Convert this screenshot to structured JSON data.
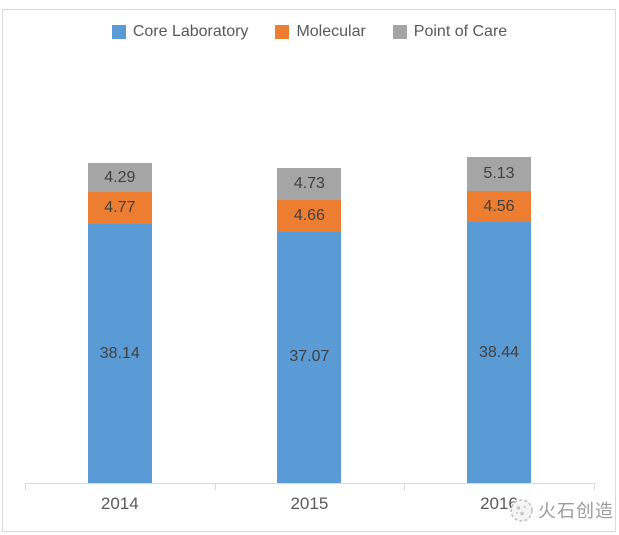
{
  "chart_data": {
    "type": "bar",
    "stacked": true,
    "categories": [
      "2014",
      "2015",
      "2016"
    ],
    "series": [
      {
        "name": "Core Laboratory",
        "color": "#5B9BD5",
        "values": [
          38.14,
          37.07,
          38.44
        ]
      },
      {
        "name": "Molecular",
        "color": "#ED7D31",
        "values": [
          4.77,
          4.66,
          4.56
        ]
      },
      {
        "name": "Point of Care",
        "color": "#A5A5A5",
        "values": [
          4.29,
          4.73,
          5.13
        ]
      }
    ],
    "title": "",
    "xlabel": "",
    "ylabel": "",
    "grid": false,
    "legend_position": "top",
    "data_labels": true,
    "label_decimals": 2,
    "label_color": "#404040",
    "axis_color": "#D9D9D9",
    "tick_label_color": "#595959"
  },
  "watermark": {
    "text": "火石创造",
    "logo": "huoshi-logo-icon",
    "color": "#9B9B9B"
  }
}
